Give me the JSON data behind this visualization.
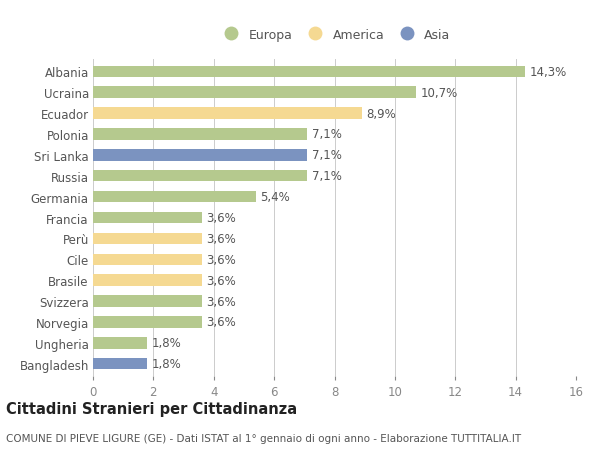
{
  "categories": [
    "Albania",
    "Ucraina",
    "Ecuador",
    "Polonia",
    "Sri Lanka",
    "Russia",
    "Germania",
    "Francia",
    "Perù",
    "Cile",
    "Brasile",
    "Svizzera",
    "Norvegia",
    "Ungheria",
    "Bangladesh"
  ],
  "values": [
    14.3,
    10.7,
    8.9,
    7.1,
    7.1,
    7.1,
    5.4,
    3.6,
    3.6,
    3.6,
    3.6,
    3.6,
    3.6,
    1.8,
    1.8
  ],
  "continents": [
    "Europa",
    "Europa",
    "America",
    "Europa",
    "Asia",
    "Europa",
    "Europa",
    "Europa",
    "America",
    "America",
    "America",
    "Europa",
    "Europa",
    "Europa",
    "Asia"
  ],
  "labels": [
    "14,3%",
    "10,7%",
    "8,9%",
    "7,1%",
    "7,1%",
    "7,1%",
    "5,4%",
    "3,6%",
    "3,6%",
    "3,6%",
    "3,6%",
    "3,6%",
    "3,6%",
    "1,8%",
    "1,8%"
  ],
  "colors": {
    "Europa": "#b5c98e",
    "America": "#f5d992",
    "Asia": "#7b93c0"
  },
  "xlim": [
    0,
    16
  ],
  "xticks": [
    0,
    2,
    4,
    6,
    8,
    10,
    12,
    14,
    16
  ],
  "title": "Cittadini Stranieri per Cittadinanza",
  "subtitle": "COMUNE DI PIEVE LIGURE (GE) - Dati ISTAT al 1° gennaio di ogni anno - Elaborazione TUTTITALIA.IT",
  "background_color": "#ffffff",
  "grid_color": "#cccccc",
  "bar_height": 0.55,
  "label_fontsize": 8.5,
  "title_fontsize": 10.5,
  "subtitle_fontsize": 7.5,
  "ytick_fontsize": 8.5,
  "xtick_fontsize": 8.5
}
